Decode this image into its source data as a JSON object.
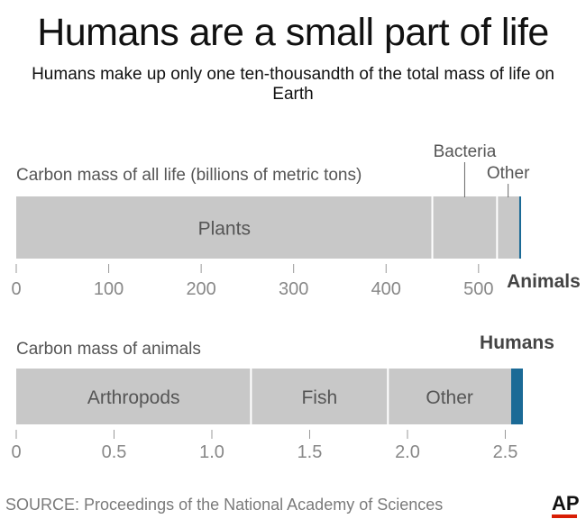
{
  "title": "Humans are a small part of life",
  "subtitle": "Humans make up only one ten-thousandth of the total mass of life on Earth",
  "source": "SOURCE: Proceedings of the National Academy of Sciences",
  "logo": "AP",
  "colors": {
    "segment": "#c8c8c8",
    "highlight": "#1b6a96",
    "text": "#555555",
    "logo_accent": "#d81e05"
  },
  "chart_data": [
    {
      "type": "bar",
      "orientation": "horizontal",
      "stacked": true,
      "title": "Carbon mass of all life (billions of metric tons)",
      "segments": [
        {
          "name": "Plants",
          "value": 450,
          "label_position": "inside"
        },
        {
          "name": "Bacteria",
          "value": 70,
          "label_position": "above"
        },
        {
          "name": "Other",
          "value": 24,
          "label_position": "above"
        },
        {
          "name": "Animals",
          "value": 2,
          "label_position": "below",
          "highlight": true
        }
      ],
      "xlim": [
        0,
        546
      ],
      "ticks": [
        0,
        100,
        200,
        300,
        400,
        500
      ],
      "tick_labels": [
        "0",
        "100",
        "200",
        "300",
        "400",
        "500"
      ]
    },
    {
      "type": "bar",
      "orientation": "horizontal",
      "stacked": true,
      "title": "Carbon mass of animals",
      "segments": [
        {
          "name": "Arthropods",
          "value": 1.2,
          "label_position": "inside"
        },
        {
          "name": "Fish",
          "value": 0.7,
          "label_position": "inside"
        },
        {
          "name": "Other",
          "value": 0.63,
          "label_position": "inside"
        },
        {
          "name": "Humans",
          "value": 0.06,
          "label_position": "above",
          "highlight": true
        }
      ],
      "xlim": [
        0,
        2.59
      ],
      "ticks": [
        0,
        0.5,
        1.0,
        1.5,
        2.0,
        2.5
      ],
      "tick_labels": [
        "0",
        "0.5",
        "1.0",
        "1.5",
        "2.0",
        "2.5"
      ]
    }
  ]
}
